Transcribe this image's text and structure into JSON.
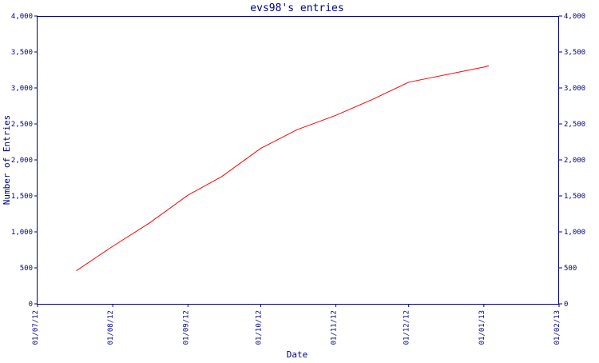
{
  "chart_data": {
    "type": "line",
    "title": "evs98's entries",
    "xlabel": "Date",
    "ylabel": "Number of Entries",
    "x_ticks": [
      "01/07/12",
      "01/08/12",
      "01/09/12",
      "01/10/12",
      "01/11/12",
      "01/12/12",
      "01/01/13",
      "01/02/13"
    ],
    "x_range": [
      "2012-07-01",
      "2013-02-01"
    ],
    "ylim": [
      0,
      4000
    ],
    "y_ticks": [
      0,
      500,
      1000,
      1500,
      2000,
      2500,
      3000,
      3500,
      4000
    ],
    "y_tick_labels": [
      "0",
      "500",
      "1,000",
      "1,500",
      "2,000",
      "2,500",
      "3,000",
      "3,500",
      "4,000"
    ],
    "grid": false,
    "right_axis_mirrors_left": true,
    "series": [
      {
        "color": "#ff0000",
        "points": [
          {
            "x": "2012-07-17",
            "y": 460
          },
          {
            "x": "2012-08-01",
            "y": 800
          },
          {
            "x": "2012-08-16",
            "y": 1120
          },
          {
            "x": "2012-09-01",
            "y": 1510
          },
          {
            "x": "2012-09-15",
            "y": 1770
          },
          {
            "x": "2012-10-01",
            "y": 2160
          },
          {
            "x": "2012-10-16",
            "y": 2420
          },
          {
            "x": "2012-11-01",
            "y": 2620
          },
          {
            "x": "2012-11-16",
            "y": 2840
          },
          {
            "x": "2012-12-01",
            "y": 3080
          },
          {
            "x": "2013-01-01",
            "y": 3290
          },
          {
            "x": "2013-01-03",
            "y": 3310
          }
        ]
      }
    ]
  },
  "colors": {
    "axis": "#000080",
    "text": "#000080",
    "line": "#ff0000",
    "background": "#ffffff"
  }
}
